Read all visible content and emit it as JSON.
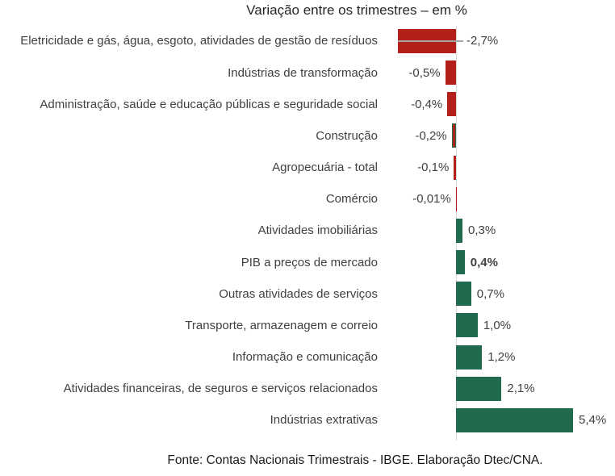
{
  "title": "Variação entre os trimestres – em %",
  "source": "Fonte: Contas Nacionais Trimestrais - IBGE. Elaboração Dtec/CNA.",
  "colors": {
    "negative_bar": "#b22019",
    "positive_bar": "#206a4e",
    "outline_green": "#206a4e",
    "axis_line": "#d9d9d9",
    "leader_line": "#a6a6a6",
    "label_text": "#404040",
    "title_text": "#262626"
  },
  "chart_data": {
    "type": "bar",
    "orientation": "horizontal",
    "title": "Variação entre os trimestres – em %",
    "value_unit": "%",
    "xlim": [
      -3,
      6
    ],
    "grid": false,
    "legend": false,
    "categories": [
      "Eletricidade e gás, água, esgoto, atividades de gestão de resíduos",
      "Indústrias de transformação",
      "Administração, saúde e educação públicas e seguridade social",
      "Construção",
      "Agropecuária - total",
      "Comércio",
      "Atividades imobiliárias",
      "PIB a preços de mercado",
      "Outras atividades de serviços",
      "Transporte, armazenagem e correio",
      "Informação e comunicação",
      "Atividades financeiras, de seguros e serviços relacionados",
      "Indústrias extrativas"
    ],
    "values": [
      -2.7,
      -0.5,
      -0.4,
      -0.2,
      -0.1,
      -0.01,
      0.3,
      0.4,
      0.7,
      1.0,
      1.2,
      2.1,
      5.4
    ],
    "rows": [
      {
        "category": "Eletricidade e gás, água, esgoto, atividades de gestão de resíduos",
        "value": -2.7,
        "label": "-2,7%",
        "callout": true,
        "outlined": false,
        "bold": false
      },
      {
        "category": "Indústrias de transformação",
        "value": -0.5,
        "label": "-0,5%",
        "callout": false,
        "outlined": false,
        "bold": false
      },
      {
        "category": "Administração, saúde e educação públicas e seguridade social",
        "value": -0.4,
        "label": "-0,4%",
        "callout": false,
        "outlined": false,
        "bold": false
      },
      {
        "category": "Construção",
        "value": -0.2,
        "label": "-0,2%",
        "callout": false,
        "outlined": true,
        "bold": false
      },
      {
        "category": "Agropecuária - total",
        "value": -0.1,
        "label": "-0,1%",
        "callout": false,
        "outlined": false,
        "bold": false
      },
      {
        "category": "Comércio",
        "value": -0.01,
        "label": "-0,01%",
        "callout": false,
        "outlined": false,
        "bold": false
      },
      {
        "category": "Atividades imobiliárias",
        "value": 0.3,
        "label": "0,3%",
        "callout": false,
        "outlined": false,
        "bold": false
      },
      {
        "category": "PIB a preços de mercado",
        "value": 0.4,
        "label": "0,4%",
        "callout": false,
        "outlined": false,
        "bold": true
      },
      {
        "category": "Outras atividades de serviços",
        "value": 0.7,
        "label": "0,7%",
        "callout": false,
        "outlined": false,
        "bold": false
      },
      {
        "category": "Transporte, armazenagem e correio",
        "value": 1.0,
        "label": "1,0%",
        "callout": false,
        "outlined": false,
        "bold": false
      },
      {
        "category": "Informação e comunicação",
        "value": 1.2,
        "label": "1,2%",
        "callout": false,
        "outlined": false,
        "bold": false
      },
      {
        "category": "Atividades financeiras, de seguros e serviços relacionados",
        "value": 2.1,
        "label": "2,1%",
        "callout": false,
        "outlined": false,
        "bold": false
      },
      {
        "category": "Indústrias extrativas",
        "value": 5.4,
        "label": "5,4%",
        "callout": false,
        "outlined": false,
        "bold": false
      }
    ]
  }
}
